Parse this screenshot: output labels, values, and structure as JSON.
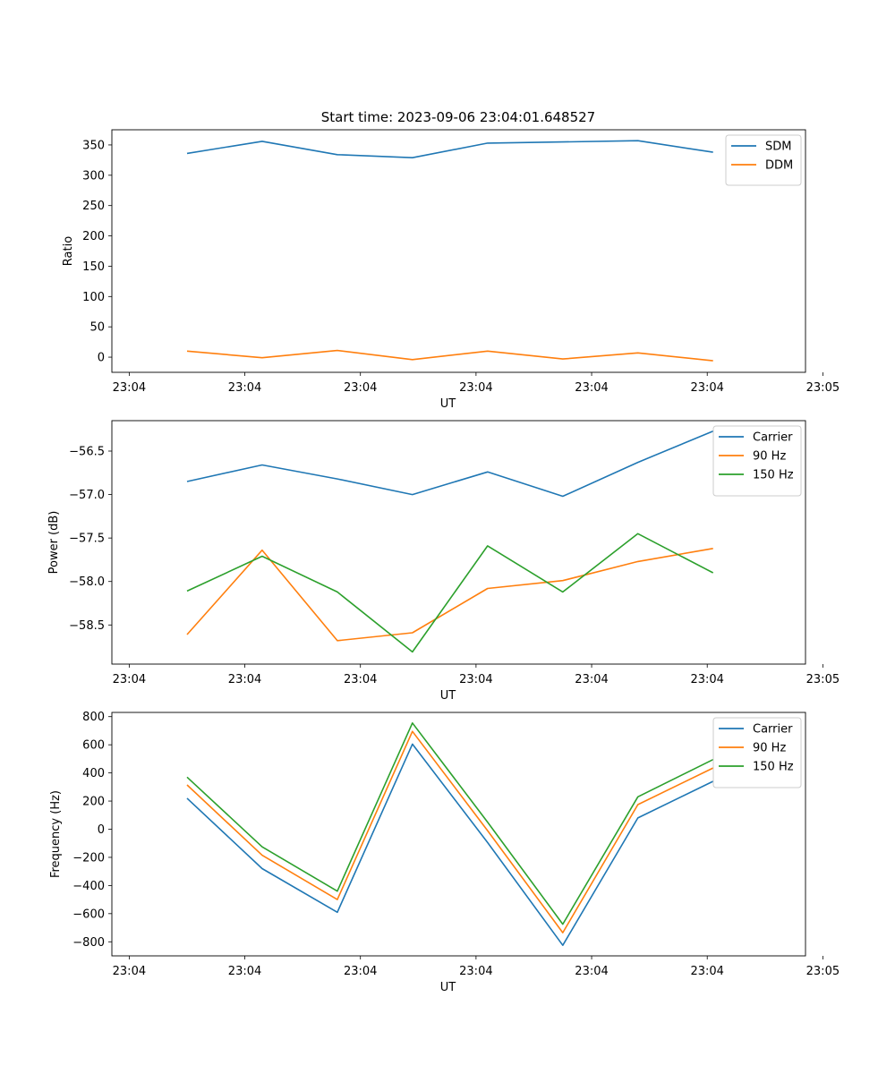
{
  "chart_data": [
    {
      "type": "line",
      "title": "Start time: 2023-09-06 23:04:01.648527",
      "xlabel": "UT",
      "ylabel": "Ratio",
      "xlim": [
        0,
        12
      ],
      "ylim": [
        -25,
        375
      ],
      "yticks": [
        0,
        50,
        100,
        150,
        200,
        250,
        300,
        350
      ],
      "ytick_labels": [
        "0",
        "50",
        "100",
        "150",
        "200",
        "250",
        "300",
        "350"
      ],
      "xticks": [
        0.3,
        2.3,
        4.3,
        6.3,
        8.3,
        10.3,
        12.3
      ],
      "xtick_labels": [
        "23:04",
        "23:04",
        "23:04",
        "23:04",
        "23:04",
        "23:04",
        "23:05"
      ],
      "x": [
        1.3,
        2.6,
        3.9,
        5.2,
        6.5,
        7.8,
        9.1,
        10.4
      ],
      "legend_position": "top-right",
      "series": [
        {
          "name": "SDM",
          "color": "#1f77b4",
          "values": [
            336,
            356,
            334,
            329,
            353,
            355,
            357,
            338
          ]
        },
        {
          "name": "DDM",
          "color": "#ff7f0e",
          "values": [
            10,
            -1,
            11,
            -4,
            10,
            -3,
            7,
            -6
          ]
        }
      ]
    },
    {
      "type": "line",
      "title": "",
      "xlabel": "UT",
      "ylabel": "Power (dB)",
      "xlim": [
        0,
        12
      ],
      "ylim": [
        -58.95,
        -56.15
      ],
      "yticks": [
        -58.5,
        -58.0,
        -57.5,
        -57.0,
        -56.5
      ],
      "ytick_labels": [
        "−58.5",
        "−58.0",
        "−57.5",
        "−57.0",
        "−56.5"
      ],
      "xticks": [
        0.3,
        2.3,
        4.3,
        6.3,
        8.3,
        10.3,
        12.3
      ],
      "xtick_labels": [
        "23:04",
        "23:04",
        "23:04",
        "23:04",
        "23:04",
        "23:04",
        "23:05"
      ],
      "x": [
        1.3,
        2.6,
        3.9,
        5.2,
        6.5,
        7.8,
        9.1,
        10.4
      ],
      "legend_position": "top-right",
      "series": [
        {
          "name": "Carrier",
          "color": "#1f77b4",
          "values": [
            -56.85,
            -56.66,
            -56.82,
            -57.0,
            -56.74,
            -57.02,
            -56.63,
            -56.27
          ]
        },
        {
          "name": "90 Hz",
          "color": "#ff7f0e",
          "values": [
            -58.61,
            -57.64,
            -58.68,
            -58.59,
            -58.08,
            -57.99,
            -57.77,
            -57.62
          ]
        },
        {
          "name": "150 Hz",
          "color": "#2ca02c",
          "values": [
            -58.11,
            -57.71,
            -58.12,
            -58.81,
            -57.59,
            -58.12,
            -57.45,
            -57.9
          ]
        }
      ]
    },
    {
      "type": "line",
      "title": "",
      "xlabel": "UT",
      "ylabel": "Frequency (Hz)",
      "xlim": [
        0,
        12
      ],
      "ylim": [
        -900,
        830
      ],
      "yticks": [
        -800,
        -600,
        -400,
        -200,
        0,
        200,
        400,
        600,
        800
      ],
      "ytick_labels": [
        "−800",
        "−600",
        "−400",
        "−200",
        "0",
        "200",
        "400",
        "600",
        "800"
      ],
      "xticks": [
        0.3,
        2.3,
        4.3,
        6.3,
        8.3,
        10.3,
        12.3
      ],
      "xtick_labels": [
        "23:04",
        "23:04",
        "23:04",
        "23:04",
        "23:04",
        "23:04",
        "23:05"
      ],
      "x": [
        1.3,
        2.6,
        3.9,
        5.2,
        6.5,
        7.8,
        9.1,
        10.4
      ],
      "legend_position": "top-right",
      "series": [
        {
          "name": "Carrier",
          "color": "#1f77b4",
          "values": [
            220,
            -280,
            -590,
            605,
            -95,
            -825,
            80,
            340
          ]
        },
        {
          "name": "90 Hz",
          "color": "#ff7f0e",
          "values": [
            315,
            -185,
            -500,
            695,
            -10,
            -735,
            175,
            435
          ]
        },
        {
          "name": "150 Hz",
          "color": "#2ca02c",
          "values": [
            370,
            -125,
            -440,
            755,
            50,
            -675,
            230,
            495
          ]
        }
      ]
    }
  ]
}
